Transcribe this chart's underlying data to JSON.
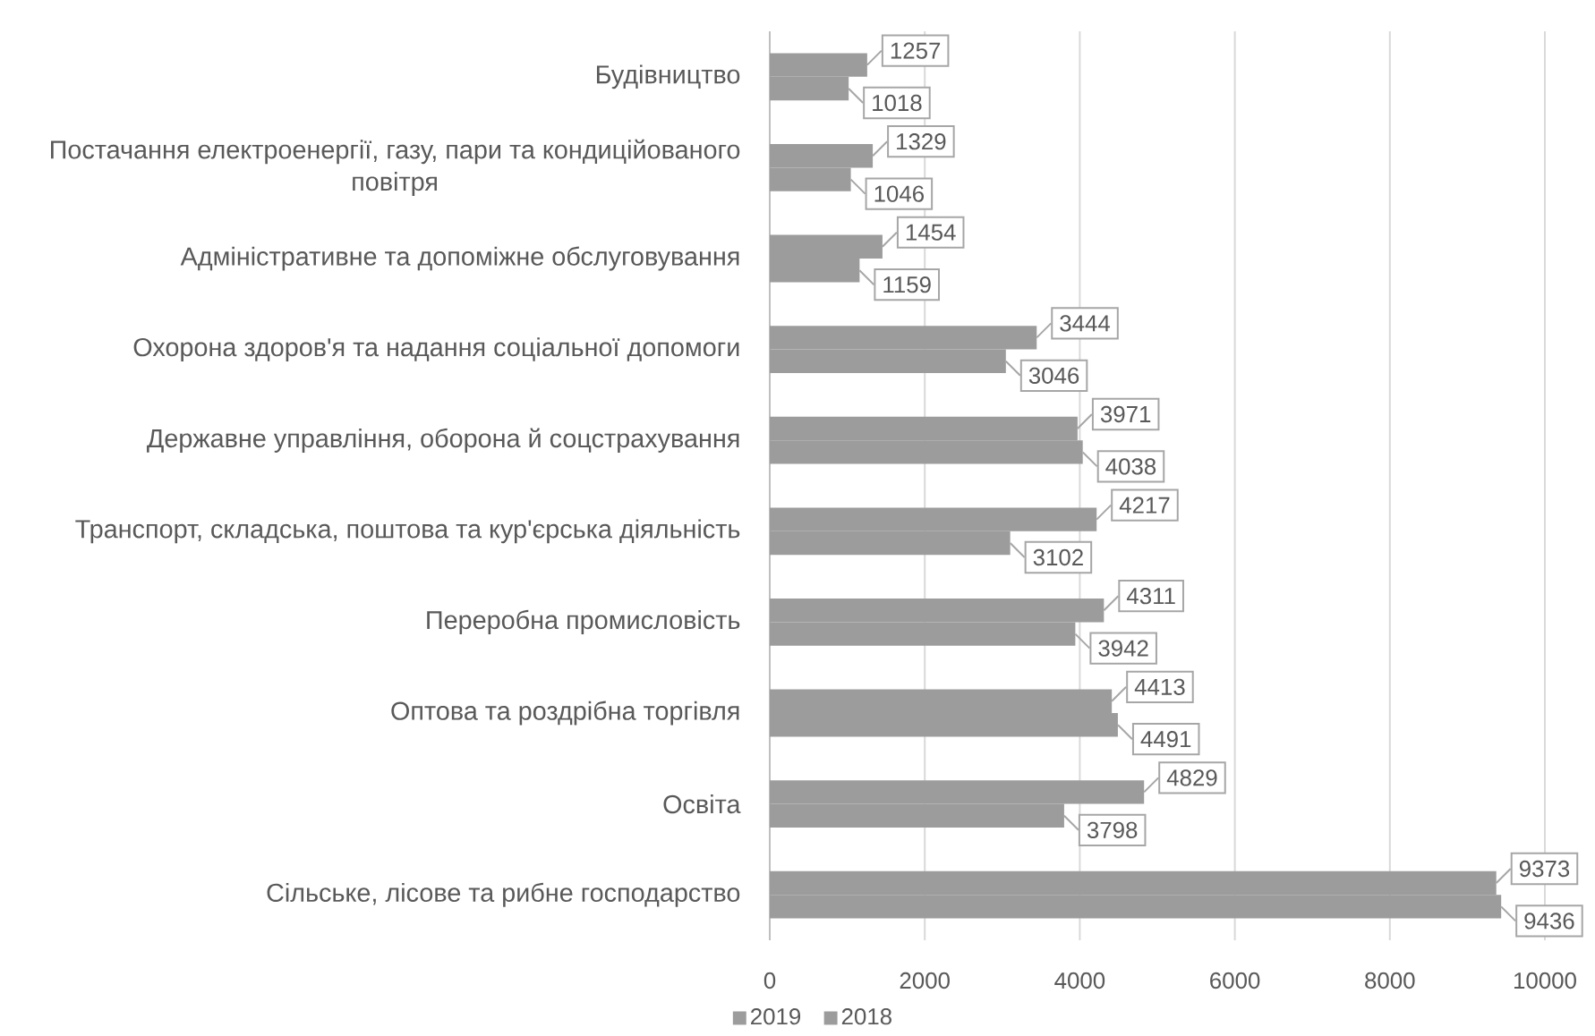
{
  "chart_data": {
    "type": "bar",
    "orientation": "horizontal",
    "categories": [
      "Будівництво",
      "Постачання електроенергії, газу, пари та кондиційованого повітря",
      "Адміністративне та допоміжне обслуговування",
      "Охорона здоров'я та надання соціальної допомоги",
      "Державне управління, оборона й соцстрахування",
      "Транспорт, складська, поштова та кур'єрська діяльність",
      "Переробна промисловість",
      "Оптова та роздрібна торгівля",
      "Освіта",
      "Сільське, лісове та рибне господарство"
    ],
    "series": [
      {
        "name": "2019",
        "color": "#9c9c9c",
        "values": [
          1018,
          1046,
          1159,
          3046,
          4038,
          3102,
          3942,
          4491,
          3798,
          9436
        ]
      },
      {
        "name": "2018",
        "color": "#9c9c9c",
        "values": [
          1257,
          1329,
          1454,
          3444,
          3971,
          4217,
          4311,
          4413,
          4829,
          9373
        ]
      }
    ],
    "xlim": [
      0,
      10000
    ],
    "xticks": [
      0,
      2000,
      4000,
      6000,
      8000,
      10000
    ],
    "grid": "x",
    "legend": "bottom",
    "data_labels": true
  }
}
